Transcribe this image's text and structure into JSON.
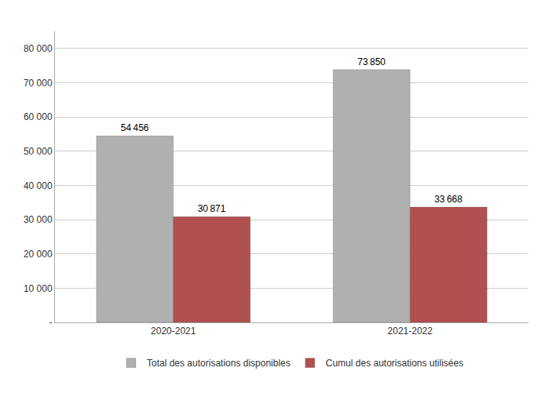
{
  "chart_data": {
    "type": "bar",
    "categories": [
      "2020-2021",
      "2021-2022"
    ],
    "series": [
      {
        "name": "Total des autorisations disponibles",
        "color": "#b0b0b0",
        "values": [
          54456,
          73850
        ],
        "value_labels": [
          "54 456",
          "73 850"
        ]
      },
      {
        "name": "Cumul des autorisations utilisées",
        "color": "#b05050",
        "values": [
          30871,
          33668
        ],
        "value_labels": [
          "30 871",
          "33 668"
        ]
      }
    ],
    "ylim": [
      0,
      85000
    ],
    "yticks": [
      {
        "value": 0,
        "label": "-"
      },
      {
        "value": 10000,
        "label": "10 000"
      },
      {
        "value": 20000,
        "label": "20 000"
      },
      {
        "value": 30000,
        "label": "30 000"
      },
      {
        "value": 40000,
        "label": "40 000"
      },
      {
        "value": 50000,
        "label": "50 000"
      },
      {
        "value": 60000,
        "label": "60 000"
      },
      {
        "value": 70000,
        "label": "70 000"
      },
      {
        "value": 80000,
        "label": "80 000"
      }
    ],
    "grid": true,
    "legend": "bottom",
    "data_labels": true
  }
}
